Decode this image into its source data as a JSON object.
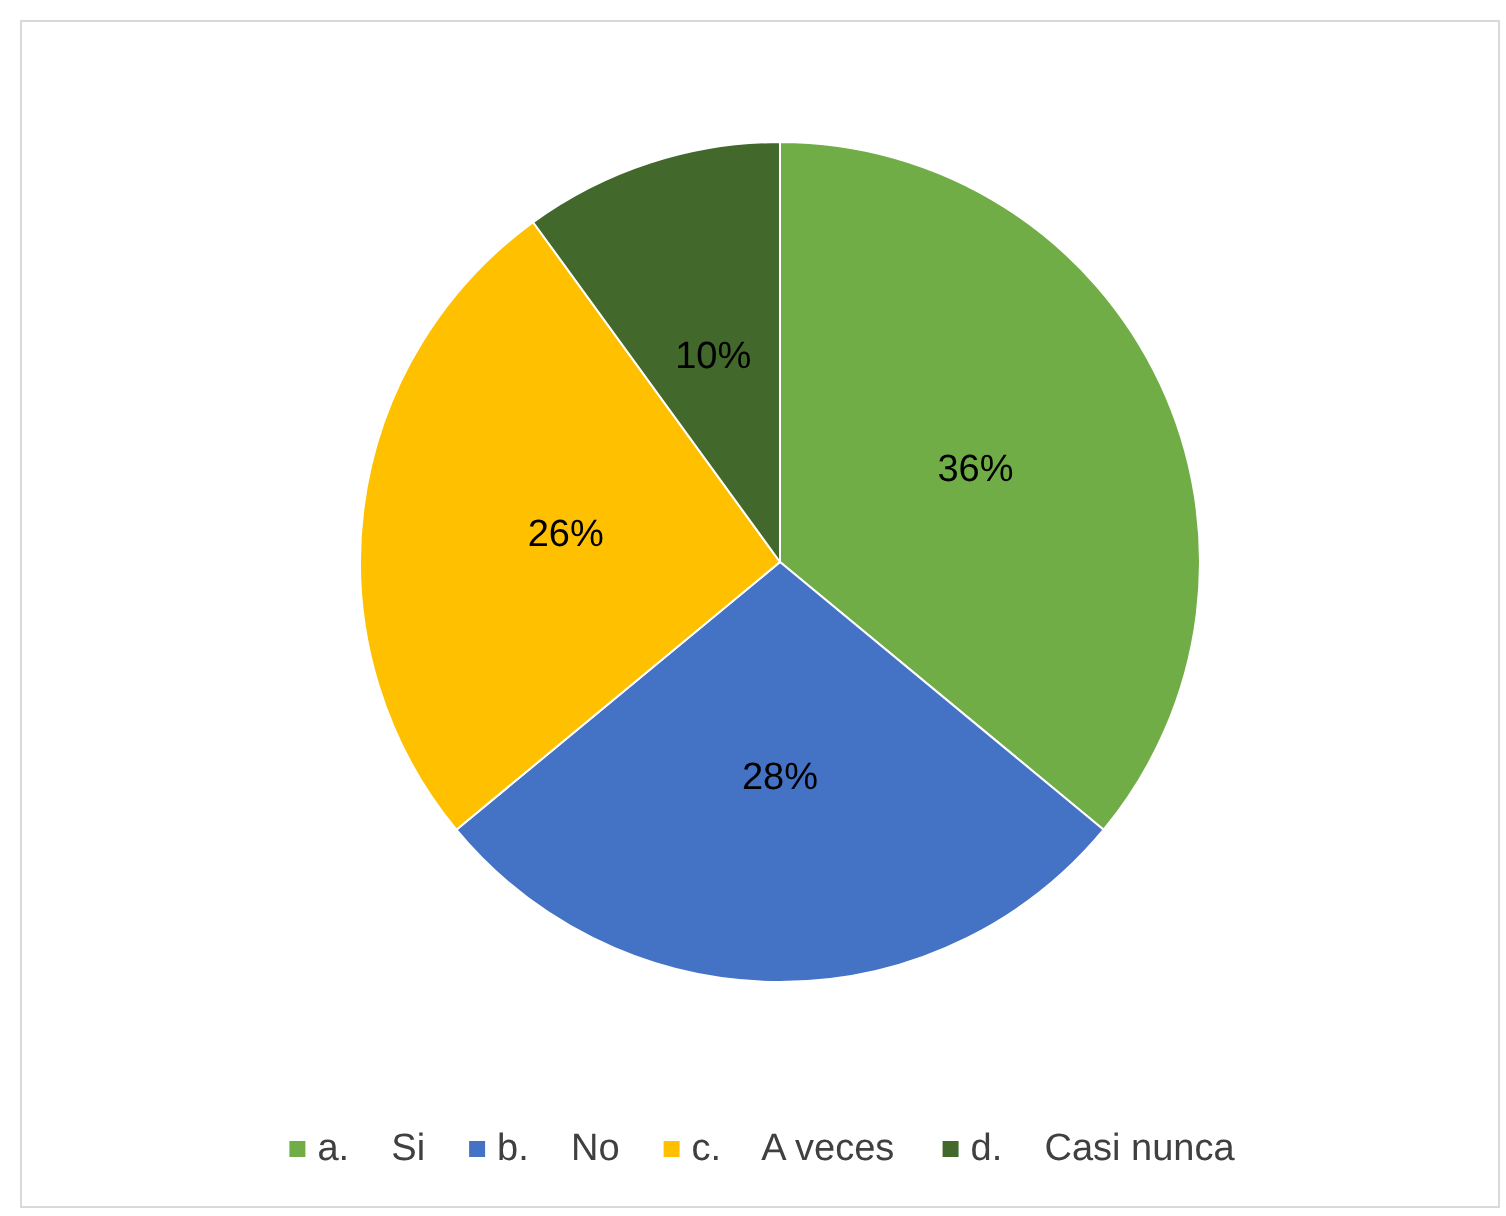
{
  "chart_data": {
    "type": "pie",
    "categories": [
      "a.    Si",
      "b.    No",
      "c.    A veces",
      "d.    Casi nunca"
    ],
    "values": [
      36,
      28,
      26,
      10
    ],
    "colors": [
      "#70ad47",
      "#4472c4",
      "#ffc000",
      "#43682b"
    ],
    "value_labels": [
      "36%",
      "28%",
      "26%",
      "10%"
    ],
    "legend": "bottom"
  }
}
